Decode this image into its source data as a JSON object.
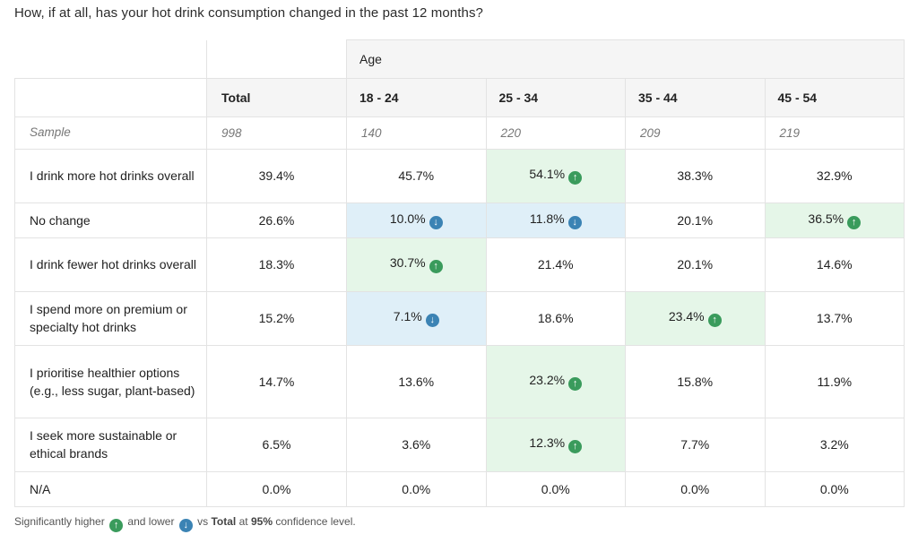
{
  "question": "How, if at all, has your hot drink consumption changed in the past 12 months?",
  "group_label": "Age",
  "columns": [
    "Total",
    "18 - 24",
    "25 - 34",
    "35 - 44",
    "45 - 54"
  ],
  "sample": {
    "label": "Sample",
    "values": [
      "998",
      "140",
      "220",
      "209",
      "219"
    ]
  },
  "rows": [
    {
      "label": "I drink more hot drinks overall",
      "values": [
        "39.4%",
        "45.7%",
        "54.1%",
        "38.3%",
        "32.9%"
      ],
      "sig": [
        "",
        "",
        "higher",
        "",
        ""
      ]
    },
    {
      "label": "No change",
      "values": [
        "26.6%",
        "10.0%",
        "11.8%",
        "20.1%",
        "36.5%"
      ],
      "sig": [
        "",
        "lower",
        "lower",
        "",
        "higher"
      ]
    },
    {
      "label": "I drink fewer hot drinks overall",
      "values": [
        "18.3%",
        "30.7%",
        "21.4%",
        "20.1%",
        "14.6%"
      ],
      "sig": [
        "",
        "higher",
        "",
        "",
        ""
      ]
    },
    {
      "label": "I spend more on premium or specialty hot drinks",
      "values": [
        "15.2%",
        "7.1%",
        "18.6%",
        "23.4%",
        "13.7%"
      ],
      "sig": [
        "",
        "lower",
        "",
        "higher",
        ""
      ]
    },
    {
      "label": "I prioritise healthier options (e.g., less sugar, plant-based)",
      "values": [
        "14.7%",
        "13.6%",
        "23.2%",
        "15.8%",
        "11.9%"
      ],
      "sig": [
        "",
        "",
        "higher",
        "",
        ""
      ]
    },
    {
      "label": "I seek more sustainable or ethical brands",
      "values": [
        "6.5%",
        "3.6%",
        "12.3%",
        "7.7%",
        "3.2%"
      ],
      "sig": [
        "",
        "",
        "higher",
        "",
        ""
      ]
    },
    {
      "label": "N/A",
      "values": [
        "0.0%",
        "0.0%",
        "0.0%",
        "0.0%",
        "0.0%"
      ],
      "sig": [
        "",
        "",
        "",
        "",
        ""
      ]
    }
  ],
  "row_heights": [
    59,
    38,
    59,
    59,
    80,
    59,
    38
  ],
  "footnote": {
    "prefix": "Significantly higher",
    "middle": "and lower",
    "vs": "vs",
    "total": "Total",
    "at": "at",
    "level": "95%",
    "suffix": "confidence level."
  },
  "colors": {
    "higher_bg": "#e5f6e8",
    "lower_bg": "#dfeff8",
    "up_icon": "#3a9b5c",
    "down_icon": "#3b83b4"
  },
  "icons": {
    "higher": "arrow-up-circle-icon",
    "lower": "arrow-down-circle-icon"
  }
}
